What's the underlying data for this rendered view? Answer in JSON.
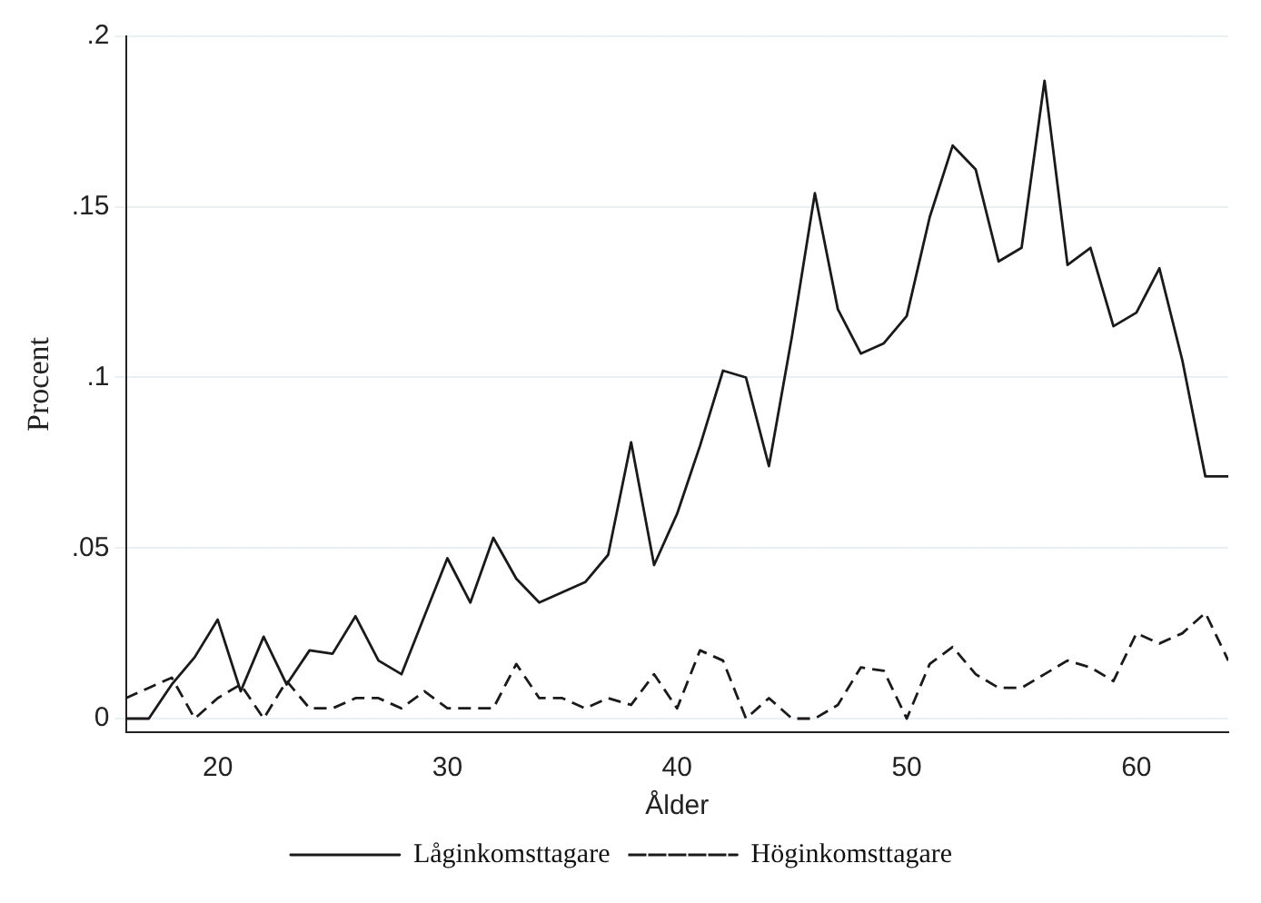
{
  "chart_data": {
    "type": "line",
    "xlabel": "Ålder",
    "ylabel": "Procent",
    "legend": "bottom",
    "grid": "y",
    "marker": "none",
    "x": [
      16,
      17,
      18,
      19,
      20,
      21,
      22,
      23,
      24,
      25,
      26,
      27,
      28,
      29,
      30,
      31,
      32,
      33,
      34,
      35,
      36,
      37,
      38,
      39,
      40,
      41,
      42,
      43,
      44,
      45,
      46,
      47,
      48,
      49,
      50,
      51,
      52,
      53,
      54,
      55,
      56,
      57,
      58,
      59,
      60,
      61,
      62,
      63,
      64
    ],
    "xlim": [
      16,
      64
    ],
    "xticks": [
      20,
      30,
      40,
      50,
      60
    ],
    "ylim": [
      -0.004,
      0.2
    ],
    "yticks": [
      {
        "value": 0,
        "label": "0"
      },
      {
        "value": 0.05,
        "label": ".05"
      },
      {
        "value": 0.1,
        "label": ".1"
      },
      {
        "value": 0.15,
        "label": ".15"
      },
      {
        "value": 0.2,
        "label": ".2"
      }
    ],
    "series": [
      {
        "name": "Låginkomsttagare",
        "color": "#1a1a1a",
        "line_style": "solid",
        "values": [
          0,
          0,
          0.01,
          0.018,
          0.029,
          0.008,
          0.024,
          0.01,
          0.02,
          0.019,
          0.03,
          0.017,
          0.013,
          0.03,
          0.047,
          0.034,
          0.053,
          0.041,
          0.034,
          0.037,
          0.04,
          0.048,
          0.081,
          0.045,
          0.06,
          0.08,
          0.102,
          0.1,
          0.074,
          0.112,
          0.154,
          0.12,
          0.107,
          0.11,
          0.118,
          0.147,
          0.168,
          0.161,
          0.134,
          0.138,
          0.187,
          0.133,
          0.138,
          0.115,
          0.119,
          0.132,
          0.105,
          0.071,
          0.071
        ]
      },
      {
        "name": "Höginkomsttagare",
        "color": "#1a1a1a",
        "line_style": "dashed",
        "values": [
          0.006,
          0.009,
          0.012,
          0,
          0.006,
          0.01,
          0,
          0.011,
          0.003,
          0.003,
          0.006,
          0.006,
          0.003,
          0.008,
          0.003,
          0.003,
          0.003,
          0.016,
          0.006,
          0.006,
          0.003,
          0.006,
          0.004,
          0.013,
          0.003,
          0.02,
          0.017,
          0,
          0.006,
          0,
          0,
          0.004,
          0.015,
          0.014,
          0,
          0.016,
          0.021,
          0.013,
          0.009,
          0.009,
          0.013,
          0.017,
          0.015,
          0.011,
          0.025,
          0.022,
          0.025,
          0.031,
          0.017
        ]
      }
    ]
  }
}
